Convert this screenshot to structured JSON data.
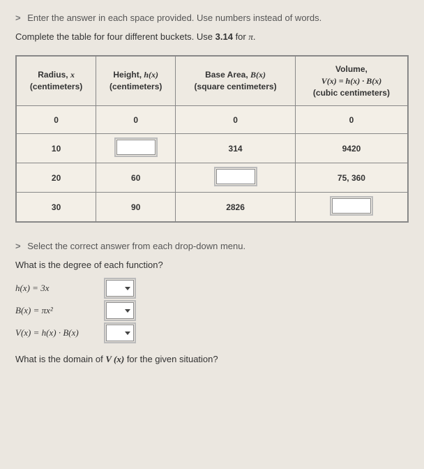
{
  "intro": {
    "line1": "Enter the answer in each space provided. Use numbers instead of words.",
    "line2_pre": "Complete the table for four different buckets. Use ",
    "pi_val": "3.14",
    "line2_mid": " for ",
    "pi_sym": "π",
    "line2_end": "."
  },
  "table": {
    "headers": {
      "radius_l1": "Radius, ",
      "radius_var": "x",
      "radius_l2": "(centimeters)",
      "height_l1": "Height, ",
      "height_var": "h(x)",
      "height_l2": "(centimeters)",
      "base_l1": "Base Area, ",
      "base_var": "B(x)",
      "base_l2": "(square centimeters)",
      "vol_l1": "Volume,",
      "vol_eq": "V(x) = h(x) · B(x)",
      "vol_l2": "(cubic centimeters)"
    },
    "rows": [
      {
        "r": "0",
        "h": "0",
        "b": "0",
        "v": "0"
      },
      {
        "r": "10",
        "h": null,
        "b": "314",
        "v": "9420"
      },
      {
        "r": "20",
        "h": "60",
        "b": null,
        "v": "75, 360"
      },
      {
        "r": "30",
        "h": "90",
        "b": "2826",
        "v": null
      }
    ]
  },
  "section2": {
    "prompt": "Select the correct answer from each drop-down menu.",
    "question": "What is the degree of each function?",
    "funcs": {
      "h": "h(x) = 3x",
      "b": "B(x) = πx²",
      "v": "V(x) = h(x) · B(x)"
    },
    "domain_q_pre": "What is the domain of ",
    "domain_fn": "V (x)",
    "domain_q_post": " for the given situation?"
  },
  "colors": {
    "bg": "#ebe7e0",
    "border": "#888888",
    "text": "#333333",
    "input_bg": "#ffffff"
  }
}
